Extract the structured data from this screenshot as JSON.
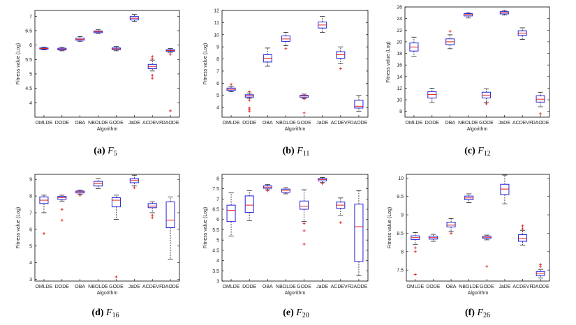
{
  "chart_data": [
    {
      "type": "box",
      "caption": {
        "label": "(a)",
        "func": "F",
        "sub": "5"
      },
      "xlabel": "Algorithm",
      "ylabel": "Fitness value (Log)",
      "categories": [
        "OMLDE",
        "DODE",
        "OBA",
        "NBOLDE",
        "GODE",
        "JaDE",
        "ACDEVF",
        "DAODE"
      ],
      "ylim": [
        3.5,
        7.2
      ],
      "yticks": [
        4,
        4.5,
        5,
        5.5,
        6,
        6.5,
        7
      ],
      "boxes": [
        {
          "min": 5.83,
          "q1": 5.86,
          "median": 5.88,
          "q3": 5.9,
          "max": 5.93,
          "outliers": []
        },
        {
          "min": 5.8,
          "q1": 5.83,
          "median": 5.86,
          "q3": 5.89,
          "max": 5.92,
          "outliers": []
        },
        {
          "min": 6.13,
          "q1": 6.17,
          "median": 6.2,
          "q3": 6.24,
          "max": 6.29,
          "outliers": []
        },
        {
          "min": 6.4,
          "q1": 6.43,
          "median": 6.46,
          "q3": 6.49,
          "max": 6.53,
          "outliers": []
        },
        {
          "min": 5.8,
          "q1": 5.84,
          "median": 5.87,
          "q3": 5.9,
          "max": 5.95,
          "outliers": []
        },
        {
          "min": 6.82,
          "q1": 6.87,
          "median": 6.93,
          "q3": 6.99,
          "max": 7.07,
          "outliers": []
        },
        {
          "min": 5.1,
          "q1": 5.18,
          "median": 5.26,
          "q3": 5.33,
          "max": 5.48,
          "outliers": [
            5.6,
            5.52,
            4.95,
            4.85
          ]
        },
        {
          "min": 5.75,
          "q1": 5.78,
          "median": 5.81,
          "q3": 5.84,
          "max": 5.88,
          "outliers": [
            5.68,
            3.72
          ]
        }
      ]
    },
    {
      "type": "box",
      "caption": {
        "label": "(b)",
        "func": "F",
        "sub": "11"
      },
      "xlabel": "Algorithm",
      "ylabel": "Fitness value (Log)",
      "categories": [
        "OMLDE",
        "DODE",
        "OBA",
        "NBOLDE",
        "GODE",
        "JaDE",
        "ACDEVF",
        "DAODE"
      ],
      "ylim": [
        3.2,
        12
      ],
      "yticks": [
        4,
        5,
        6,
        7,
        8,
        9,
        10,
        11,
        12
      ],
      "boxes": [
        {
          "min": 5.3,
          "q1": 5.4,
          "median": 5.5,
          "q3": 5.6,
          "max": 5.72,
          "outliers": [
            5.9
          ]
        },
        {
          "min": 4.75,
          "q1": 4.85,
          "median": 4.95,
          "q3": 5.05,
          "max": 5.2,
          "outliers": [
            5.3,
            4.6,
            3.95,
            3.8,
            3.7
          ]
        },
        {
          "min": 7.4,
          "q1": 7.75,
          "median": 8.05,
          "q3": 8.35,
          "max": 8.9,
          "outliers": []
        },
        {
          "min": 9.1,
          "q1": 9.45,
          "median": 9.65,
          "q3": 9.9,
          "max": 10.2,
          "outliers": [
            8.85
          ]
        },
        {
          "min": 4.75,
          "q1": 4.85,
          "median": 4.95,
          "q3": 5.0,
          "max": 5.1,
          "outliers": [
            4.7,
            3.55
          ]
        },
        {
          "min": 10.2,
          "q1": 10.55,
          "median": 10.8,
          "q3": 11.05,
          "max": 11.5,
          "outliers": []
        },
        {
          "min": 7.6,
          "q1": 8.05,
          "median": 8.35,
          "q3": 8.6,
          "max": 9.0,
          "outliers": [
            7.2
          ]
        },
        {
          "min": 3.7,
          "q1": 3.95,
          "median": 4.1,
          "q3": 4.6,
          "max": 5.0,
          "outliers": []
        }
      ]
    },
    {
      "type": "box",
      "caption": {
        "label": "(c)",
        "func": "F",
        "sub": "12"
      },
      "xlabel": "Algorithm",
      "ylabel": "Fitness value (Log)",
      "categories": [
        "OMLDE",
        "DODE",
        "OBA",
        "NBOLDE",
        "GODE",
        "JaDE",
        "ACDEVF",
        "DAODE"
      ],
      "ylim": [
        7,
        26
      ],
      "yticks": [
        8,
        10,
        12,
        14,
        16,
        18,
        20,
        22,
        24,
        26
      ],
      "boxes": [
        {
          "min": 17.5,
          "q1": 18.4,
          "median": 19.1,
          "q3": 19.8,
          "max": 20.8,
          "outliers": []
        },
        {
          "min": 9.5,
          "q1": 10.3,
          "median": 10.9,
          "q3": 11.4,
          "max": 12.0,
          "outliers": []
        },
        {
          "min": 18.8,
          "q1": 19.5,
          "median": 20.0,
          "q3": 20.5,
          "max": 21.2,
          "outliers": [
            21.8
          ]
        },
        {
          "min": 24.1,
          "q1": 24.45,
          "median": 24.7,
          "q3": 24.85,
          "max": 25.0,
          "outliers": []
        },
        {
          "min": 9.6,
          "q1": 10.3,
          "median": 10.8,
          "q3": 11.3,
          "max": 11.9,
          "outliers": [
            9.3
          ]
        },
        {
          "min": 24.6,
          "q1": 24.8,
          "median": 25.0,
          "q3": 25.2,
          "max": 25.4,
          "outliers": []
        },
        {
          "min": 20.4,
          "q1": 21.1,
          "median": 21.5,
          "q3": 21.9,
          "max": 22.4,
          "outliers": []
        },
        {
          "min": 8.8,
          "q1": 9.6,
          "median": 10.1,
          "q3": 10.7,
          "max": 11.3,
          "outliers": [
            7.6
          ]
        }
      ]
    },
    {
      "type": "box",
      "caption": {
        "label": "(d)",
        "func": "F",
        "sub": "16"
      },
      "xlabel": "Algorithm",
      "ylabel": "Fitness value (Log)",
      "categories": [
        "OMLDE",
        "DODE",
        "OBA",
        "NBOLDE",
        "GODE",
        "JaDE",
        "ACDEVF",
        "DAODE"
      ],
      "ylim": [
        2.9,
        9.3
      ],
      "yticks": [
        3,
        4,
        5,
        6,
        7,
        8,
        9
      ],
      "boxes": [
        {
          "min": 7.0,
          "q1": 7.55,
          "median": 7.75,
          "q3": 7.95,
          "max": 8.05,
          "outliers": [
            5.75
          ]
        },
        {
          "min": 7.7,
          "q1": 7.8,
          "median": 7.9,
          "q3": 7.98,
          "max": 8.05,
          "outliers": [
            7.2,
            6.55
          ]
        },
        {
          "min": 8.1,
          "q1": 8.18,
          "median": 8.25,
          "q3": 8.3,
          "max": 8.35,
          "outliers": [
            8.05
          ]
        },
        {
          "min": 8.45,
          "q1": 8.6,
          "median": 8.75,
          "q3": 8.88,
          "max": 9.05,
          "outliers": []
        },
        {
          "min": 6.6,
          "q1": 7.35,
          "median": 7.75,
          "q3": 7.9,
          "max": 8.05,
          "outliers": [
            3.15
          ]
        },
        {
          "min": 8.6,
          "q1": 8.8,
          "median": 8.95,
          "q3": 9.05,
          "max": 9.25,
          "outliers": [
            8.5
          ]
        },
        {
          "min": 7.0,
          "q1": 7.3,
          "median": 7.4,
          "q3": 7.55,
          "max": 7.65,
          "outliers": [
            6.85,
            6.7
          ]
        },
        {
          "min": 4.2,
          "q1": 6.1,
          "median": 6.55,
          "q3": 7.65,
          "max": 7.95,
          "outliers": []
        }
      ]
    },
    {
      "type": "box",
      "caption": {
        "label": "(e)",
        "func": "F",
        "sub": "20"
      },
      "xlabel": "Algorithm",
      "ylabel": "Fitness value (Log)",
      "categories": [
        "OMLDE",
        "DODE",
        "OBA",
        "NBOLDE",
        "GODE",
        "JaDE",
        "ACDEVF",
        "DAODE"
      ],
      "ylim": [
        3,
        8.2
      ],
      "yticks": [
        3,
        3.5,
        4,
        4.5,
        5,
        5.5,
        6,
        6.5,
        7,
        7.5,
        8
      ],
      "boxes": [
        {
          "min": 5.2,
          "q1": 5.9,
          "median": 6.45,
          "q3": 6.7,
          "max": 7.3,
          "outliers": []
        },
        {
          "min": 5.95,
          "q1": 6.35,
          "median": 6.7,
          "q3": 7.15,
          "max": 7.4,
          "outliers": []
        },
        {
          "min": 7.45,
          "q1": 7.52,
          "median": 7.58,
          "q3": 7.64,
          "max": 7.7,
          "outliers": [
            7.4
          ]
        },
        {
          "min": 7.25,
          "q1": 7.33,
          "median": 7.42,
          "q3": 7.48,
          "max": 7.55,
          "outliers": []
        },
        {
          "min": 5.9,
          "q1": 6.5,
          "median": 6.65,
          "q3": 6.9,
          "max": 7.45,
          "outliers": [
            5.8,
            5.45,
            4.8
          ]
        },
        {
          "min": 7.8,
          "q1": 7.88,
          "median": 7.95,
          "q3": 8.0,
          "max": 8.05,
          "outliers": [
            7.75
          ]
        },
        {
          "min": 6.2,
          "q1": 6.55,
          "median": 6.7,
          "q3": 6.85,
          "max": 7.05,
          "outliers": [
            5.85
          ]
        },
        {
          "min": 3.25,
          "q1": 3.95,
          "median": 5.65,
          "q3": 6.75,
          "max": 7.4,
          "outliers": []
        }
      ]
    },
    {
      "type": "box",
      "caption": {
        "label": "(f)",
        "func": "F",
        "sub": "26"
      },
      "xlabel": "Algorithm",
      "ylabel": "Fitness value (Log)",
      "categories": [
        "OMLDE",
        "DODE",
        "OBA",
        "NBOLDE",
        "GODE",
        "JaDE",
        "ACDEVF",
        "DAODE"
      ],
      "ylim": [
        7.2,
        10.1
      ],
      "yticks": [
        7.5,
        8,
        8.5,
        9,
        9.5,
        10
      ],
      "boxes": [
        {
          "min": 8.2,
          "q1": 8.33,
          "median": 8.38,
          "q3": 8.43,
          "max": 8.52,
          "outliers": [
            8.1,
            8.0,
            7.38
          ]
        },
        {
          "min": 8.28,
          "q1": 8.34,
          "median": 8.38,
          "q3": 8.42,
          "max": 8.47,
          "outliers": []
        },
        {
          "min": 8.55,
          "q1": 8.67,
          "median": 8.72,
          "q3": 8.8,
          "max": 8.9,
          "outliers": [
            8.5
          ]
        },
        {
          "min": 9.33,
          "q1": 9.41,
          "median": 9.46,
          "q3": 9.51,
          "max": 9.57,
          "outliers": []
        },
        {
          "min": 8.32,
          "q1": 8.36,
          "median": 8.39,
          "q3": 8.42,
          "max": 8.45,
          "outliers": [
            7.6
          ]
        },
        {
          "min": 9.3,
          "q1": 9.55,
          "median": 9.7,
          "q3": 9.83,
          "max": 10.08,
          "outliers": []
        },
        {
          "min": 8.18,
          "q1": 8.28,
          "median": 8.36,
          "q3": 8.46,
          "max": 8.58,
          "outliers": [
            8.7,
            8.62
          ]
        },
        {
          "min": 7.28,
          "q1": 7.35,
          "median": 7.41,
          "q3": 7.46,
          "max": 7.52,
          "outliers": [
            7.65,
            7.6
          ]
        }
      ]
    }
  ]
}
